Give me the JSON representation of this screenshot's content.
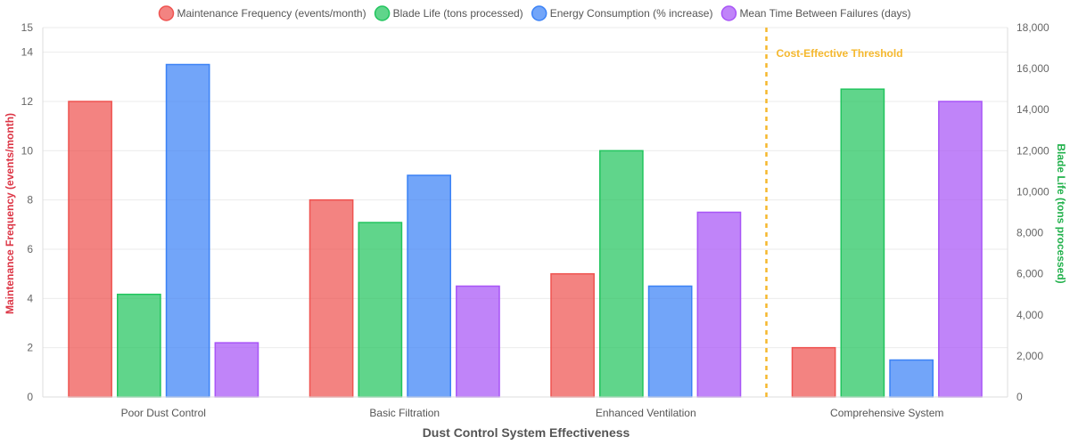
{
  "chart_data": {
    "type": "bar",
    "categories": [
      "Poor Dust Control",
      "Basic Filtration",
      "Enhanced Ventilation",
      "Comprehensive System"
    ],
    "series": [
      {
        "name": "Maintenance Frequency (events/month)",
        "axis": "left",
        "color": "#ef5350",
        "values": [
          12,
          8,
          5,
          2
        ]
      },
      {
        "name": "Blade Life (tons processed)",
        "axis": "right",
        "color": "#22c55e",
        "values": [
          5000,
          8500,
          12000,
          15000
        ]
      },
      {
        "name": "Energy Consumption (% increase)",
        "axis": "left",
        "color": "#3b82f6",
        "values": [
          13.5,
          9,
          4.5,
          1.5
        ]
      },
      {
        "name": "Mean Time Between Failures (days)",
        "axis": "left",
        "color": "#a855f7",
        "values": [
          2.2,
          4.5,
          7.5,
          12
        ]
      }
    ],
    "xlabel": "Dust Control System Effectiveness",
    "ylabel_left": "Maintenance Frequency (events/month)",
    "ylabel_right": "Blade Life (tons processed)",
    "ylabel_left_color": "#dc3545",
    "ylabel_right_color": "#22b14c",
    "ylim_left": [
      0,
      15
    ],
    "ylim_right": [
      0,
      18000
    ],
    "yticks_left": [
      "0",
      "2",
      "4",
      "6",
      "8",
      "10",
      "12",
      "14",
      "15"
    ],
    "yticks_right": [
      "0",
      "2,000",
      "4,000",
      "6,000",
      "8,000",
      "10,000",
      "12,000",
      "14,000",
      "16,000",
      "18,000"
    ],
    "legend_position": "top",
    "grid": true,
    "annotation": {
      "label": "Cost-Effective Threshold",
      "x_position": 3.5,
      "color": "#f5b82e"
    }
  }
}
